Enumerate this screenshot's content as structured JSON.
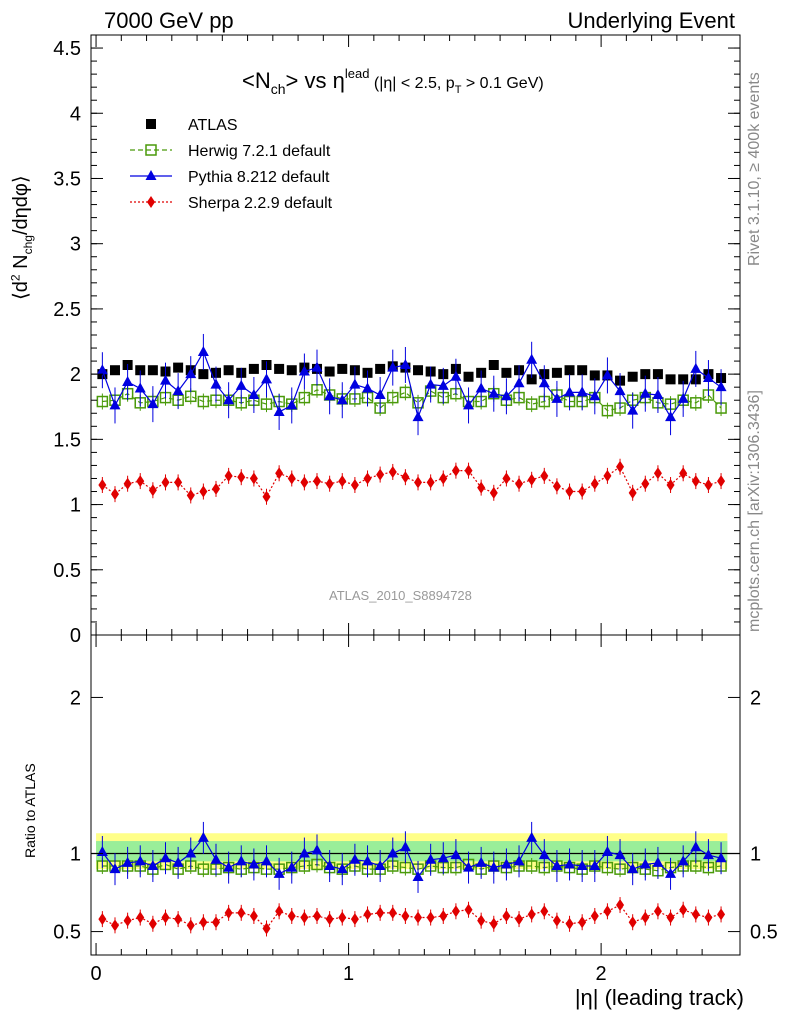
{
  "header": {
    "left": "7000 GeV pp",
    "right": "Underlying Event"
  },
  "side": {
    "rivet": "Rivet 3.1.10, ≥ 400k events",
    "mcplots": "mcplots.cern.ch [arXiv:1306.3436]"
  },
  "analysis_id": "ATLAS_2010_S8894728",
  "chart_data": [
    {
      "type": "scatter",
      "title": "<N_ch> vs η^lead (|η| < 2.5, p_T > 0.1 GeV)",
      "xlabel": "|η| (leading track)",
      "ylabel": "⟨d² N_chg/dηdφ⟩",
      "xlim": [
        -0.02,
        2.55
      ],
      "ylim": [
        0,
        4.6
      ],
      "yticks": [
        "0",
        "0.5",
        "1",
        "1.5",
        "2",
        "2.5",
        "3",
        "3.5",
        "4",
        "4.5"
      ],
      "xticks": [
        "0",
        "1",
        "2"
      ],
      "legend_position": "top-left",
      "x": [
        0.025,
        0.075,
        0.125,
        0.175,
        0.225,
        0.275,
        0.325,
        0.375,
        0.425,
        0.475,
        0.525,
        0.575,
        0.625,
        0.675,
        0.725,
        0.775,
        0.825,
        0.875,
        0.925,
        0.975,
        1.025,
        1.075,
        1.125,
        1.175,
        1.225,
        1.275,
        1.325,
        1.375,
        1.425,
        1.475,
        1.525,
        1.575,
        1.625,
        1.675,
        1.725,
        1.775,
        1.825,
        1.875,
        1.925,
        1.975,
        2.025,
        2.075,
        2.125,
        2.175,
        2.225,
        2.275,
        2.325,
        2.375,
        2.425,
        2.475
      ],
      "series": [
        {
          "name": "ATLAS",
          "color": "#000000",
          "marker": "square-filled",
          "line": "none",
          "values": [
            2.0,
            2.03,
            2.07,
            2.03,
            2.03,
            2.02,
            2.05,
            2.03,
            2.0,
            2.01,
            2.03,
            2.01,
            2.04,
            2.07,
            2.04,
            2.03,
            2.05,
            2.04,
            2.02,
            2.04,
            2.03,
            2.01,
            2.04,
            2.06,
            2.05,
            2.03,
            2.02,
            2.0,
            2.04,
            1.98,
            2.01,
            2.07,
            2.01,
            2.03,
            1.96,
            2.0,
            2.01,
            2.03,
            2.03,
            1.99,
            1.99,
            1.95,
            1.98,
            2.0,
            2.0,
            1.96,
            1.96,
            1.96,
            2.0,
            1.97
          ]
        },
        {
          "name": "Herwig 7.2.1 default",
          "color": "#4a9a0a",
          "marker": "square-open",
          "line": "dashed",
          "values": [
            1.79,
            1.8,
            1.85,
            1.78,
            1.79,
            1.82,
            1.8,
            1.83,
            1.79,
            1.8,
            1.8,
            1.78,
            1.8,
            1.77,
            1.79,
            1.77,
            1.82,
            1.88,
            1.84,
            1.81,
            1.81,
            1.82,
            1.74,
            1.82,
            1.86,
            1.78,
            1.87,
            1.82,
            1.85,
            1.79,
            1.79,
            1.85,
            1.8,
            1.82,
            1.77,
            1.79,
            1.84,
            1.79,
            1.79,
            1.82,
            1.72,
            1.74,
            1.8,
            1.82,
            1.78,
            1.77,
            1.8,
            1.78,
            1.84,
            1.74
          ]
        },
        {
          "name": "Pythia 8.212 default",
          "color": "#0000e0",
          "marker": "triangle-filled",
          "line": "solid",
          "values": [
            2.03,
            1.76,
            1.94,
            1.89,
            1.77,
            1.95,
            1.87,
            2.0,
            2.17,
            1.92,
            1.8,
            1.91,
            1.84,
            1.96,
            1.71,
            1.76,
            2.02,
            2.05,
            1.83,
            1.8,
            1.92,
            1.89,
            1.84,
            2.05,
            2.07,
            1.67,
            1.92,
            1.91,
            1.98,
            1.76,
            1.89,
            1.85,
            1.83,
            1.93,
            2.11,
            1.93,
            1.81,
            1.86,
            1.86,
            1.83,
            1.99,
            1.87,
            1.72,
            1.85,
            1.84,
            1.67,
            1.81,
            2.04,
            1.97,
            1.9
          ]
        },
        {
          "name": "Sherpa 2.2.9 default",
          "color": "#e00000",
          "marker": "diamond-filled",
          "line": "dotted",
          "values": [
            1.15,
            1.08,
            1.16,
            1.18,
            1.11,
            1.17,
            1.17,
            1.07,
            1.1,
            1.12,
            1.22,
            1.21,
            1.2,
            1.06,
            1.24,
            1.2,
            1.17,
            1.18,
            1.16,
            1.18,
            1.15,
            1.2,
            1.23,
            1.25,
            1.21,
            1.17,
            1.17,
            1.2,
            1.26,
            1.26,
            1.13,
            1.09,
            1.2,
            1.16,
            1.19,
            1.22,
            1.14,
            1.1,
            1.1,
            1.16,
            1.22,
            1.29,
            1.09,
            1.16,
            1.24,
            1.15,
            1.24,
            1.18,
            1.15,
            1.18
          ]
        }
      ]
    },
    {
      "type": "scatter",
      "ylabel": "Ratio to ATLAS",
      "xlabel": "|η| (leading track)",
      "xlim": [
        -0.02,
        2.55
      ],
      "ylim": [
        0.35,
        2.4
      ],
      "yticks": [
        "0.5",
        "1",
        "2"
      ],
      "band_color": "#99ee99",
      "outer_band_color": "#ffff88",
      "series": [
        {
          "name": "Herwig 7.2.1 default",
          "values": [
            0.92,
            0.92,
            0.92,
            0.92,
            0.9,
            0.93,
            0.9,
            0.92,
            0.9,
            0.9,
            0.91,
            0.9,
            0.91,
            0.9,
            0.9,
            0.91,
            0.92,
            0.93,
            0.91,
            0.9,
            0.92,
            0.9,
            0.9,
            0.92,
            0.91,
            0.9,
            0.92,
            0.91,
            0.91,
            0.93,
            0.9,
            0.92,
            0.91,
            0.92,
            0.92,
            0.91,
            0.92,
            0.91,
            0.9,
            0.92,
            0.91,
            0.9,
            0.91,
            0.9,
            0.89,
            0.91,
            0.92,
            0.92,
            0.91,
            0.92
          ]
        },
        {
          "name": "Pythia 8.212 default",
          "values": [
            1.01,
            0.9,
            0.94,
            0.95,
            0.92,
            0.97,
            0.94,
            1.0,
            1.1,
            0.96,
            0.91,
            0.95,
            0.93,
            0.95,
            0.87,
            0.91,
            1.0,
            1.02,
            0.92,
            0.9,
            0.96,
            0.95,
            0.92,
            1.0,
            1.04,
            0.85,
            0.96,
            0.97,
            0.99,
            0.91,
            0.94,
            0.91,
            0.93,
            0.95,
            1.1,
            0.99,
            0.92,
            0.93,
            0.92,
            0.92,
            1.01,
            0.99,
            0.9,
            0.93,
            0.94,
            0.87,
            0.95,
            1.04,
            0.99,
            0.97
          ]
        },
        {
          "name": "Sherpa 2.2.9 default",
          "values": [
            0.58,
            0.54,
            0.57,
            0.59,
            0.55,
            0.59,
            0.58,
            0.54,
            0.56,
            0.56,
            0.62,
            0.62,
            0.6,
            0.52,
            0.63,
            0.6,
            0.59,
            0.6,
            0.58,
            0.59,
            0.58,
            0.61,
            0.62,
            0.62,
            0.6,
            0.59,
            0.59,
            0.6,
            0.63,
            0.64,
            0.57,
            0.55,
            0.6,
            0.58,
            0.61,
            0.63,
            0.57,
            0.55,
            0.56,
            0.6,
            0.63,
            0.67,
            0.56,
            0.59,
            0.63,
            0.59,
            0.64,
            0.61,
            0.59,
            0.61
          ]
        }
      ]
    }
  ]
}
